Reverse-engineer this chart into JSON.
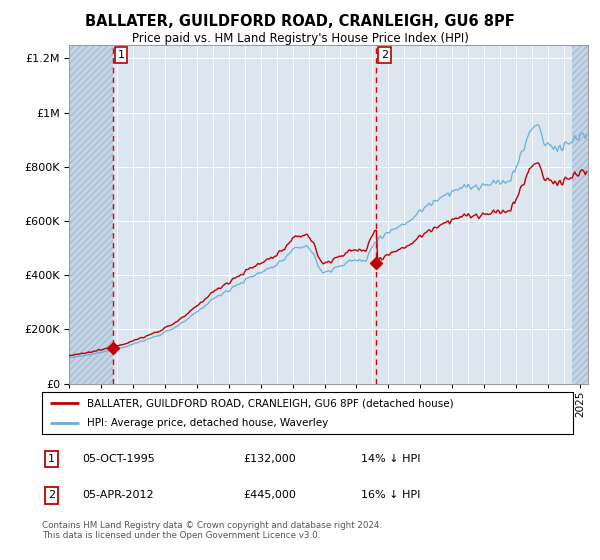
{
  "title": "BALLATER, GUILDFORD ROAD, CRANLEIGH, GU6 8PF",
  "subtitle": "Price paid vs. HM Land Registry's House Price Index (HPI)",
  "legend_line1": "BALLATER, GUILDFORD ROAD, CRANLEIGH, GU6 8PF (detached house)",
  "legend_line2": "HPI: Average price, detached house, Waverley",
  "annotation1": {
    "num": "1",
    "date": "05-OCT-1995",
    "price": "£132,000",
    "pct": "14% ↓ HPI"
  },
  "annotation2": {
    "num": "2",
    "date": "05-APR-2012",
    "price": "£445,000",
    "pct": "16% ↓ HPI"
  },
  "footnote": "Contains HM Land Registry data © Crown copyright and database right 2024.\nThis data is licensed under the Open Government Licence v3.0.",
  "sale1_year": 1995.75,
  "sale1_price": 132000,
  "sale2_year": 2012.25,
  "sale2_price": 445000,
  "hpi_color": "#6baed6",
  "price_color": "#c00000",
  "dashed_color": "#e00000",
  "background_plot": "#dce6f1",
  "background_hatch": "#c5d5e8",
  "ylim": [
    0,
    1250000
  ],
  "xlim_start": 1993.0,
  "xlim_end": 2025.5
}
